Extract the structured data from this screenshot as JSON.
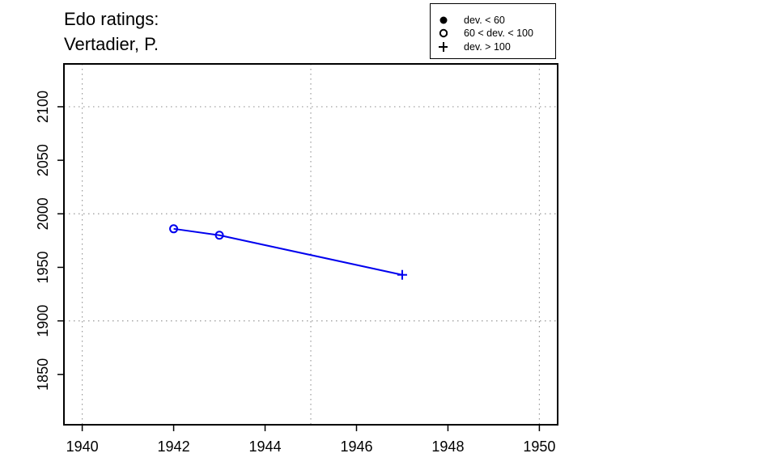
{
  "title": {
    "line1": "Edo ratings:",
    "line2": "Vertadier, P."
  },
  "legend": {
    "items": [
      {
        "symbol": "filled-circle",
        "label": "dev. < 60"
      },
      {
        "symbol": "open-circle",
        "label": "60 < dev. < 100"
      },
      {
        "symbol": "plus",
        "label": "dev. > 100"
      }
    ]
  },
  "colors": {
    "series": "#0000ee",
    "grid": "#999999",
    "axis": "#000000"
  },
  "chart_data": {
    "type": "line",
    "title": "Edo ratings: Vertadier, P.",
    "xlabel": "",
    "ylabel": "",
    "xlim": [
      1939.6,
      1950.4
    ],
    "ylim": [
      1803,
      2140
    ],
    "xticks": [
      1940,
      1942,
      1944,
      1946,
      1948,
      1950
    ],
    "yticks": [
      1850,
      1900,
      1950,
      2000,
      2050,
      2100
    ],
    "x_gridlines": [
      1940,
      1945,
      1950
    ],
    "y_gridlines": [
      1900,
      2000,
      2100
    ],
    "grid": true,
    "legend_position": "top-right",
    "series": [
      {
        "points": [
          {
            "x": 1942,
            "y": 1986,
            "marker": "open-circle"
          },
          {
            "x": 1943,
            "y": 1980,
            "marker": "open-circle"
          },
          {
            "x": 1947,
            "y": 1943,
            "marker": "plus"
          }
        ]
      }
    ]
  }
}
